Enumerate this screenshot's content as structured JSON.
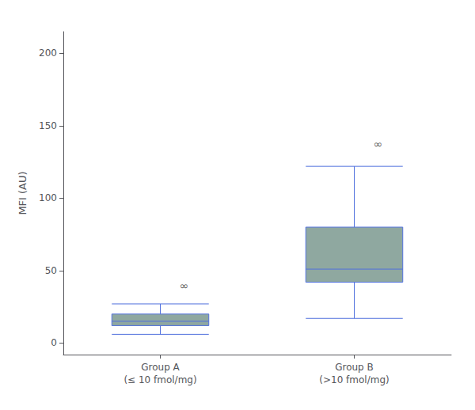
{
  "chart_data": {
    "type": "box",
    "ylabel": "MFI (AU)",
    "categories": [
      "Group A\n(≤ 10 fmol/mg)",
      "Group B\n(>10 fmol/mg)"
    ],
    "values": [
      {
        "low": 6,
        "q1": 12,
        "median": 15,
        "q3": 20,
        "high": 27,
        "annotation": {
          "text": "∞",
          "y": 33
        }
      },
      {
        "low": 17,
        "q1": 42,
        "median": 51,
        "q3": 80,
        "high": 122,
        "annotation": {
          "text": "∞",
          "y": 131
        }
      }
    ],
    "color": "#8fa8a0",
    "ylim": [
      -8,
      215
    ],
    "yticks": [
      0,
      50,
      100,
      150,
      200
    ],
    "grid": false
  }
}
